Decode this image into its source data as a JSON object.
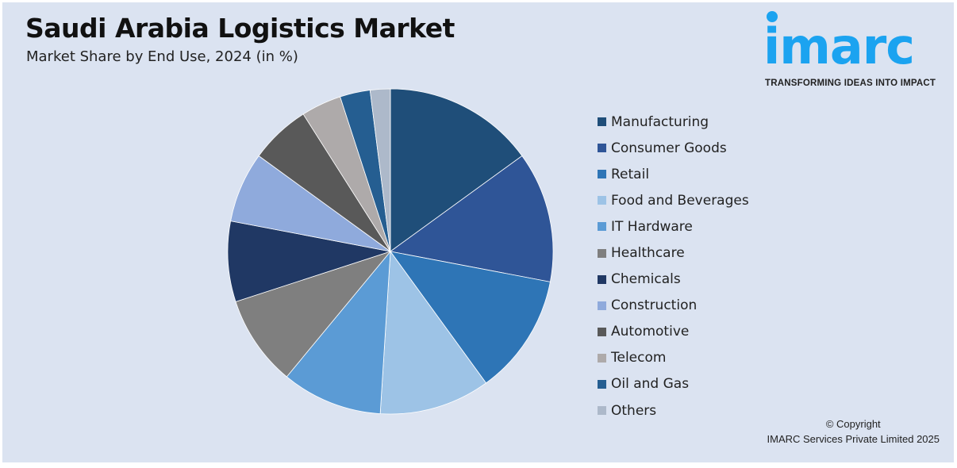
{
  "header": {
    "title": "Saudi Arabia Logistics Market",
    "subtitle": "Market Share by End Use, 2024 (in %)"
  },
  "logo": {
    "word": "imarc",
    "tagline": "TRANSFORMING IDEAS INTO IMPACT"
  },
  "footer": {
    "copyright": "© Copyright",
    "company": "IMARC Services Private Limited 2025"
  },
  "chart_data": {
    "type": "pie",
    "title": "Saudi Arabia Logistics Market",
    "subtitle": "Market Share by End Use, 2024 (in %)",
    "legend_position": "right",
    "categories": [
      "Manufacturing",
      "Consumer Goods",
      "Retail",
      "Food and Beverages",
      "IT Hardware",
      "Healthcare",
      "Chemicals",
      "Construction",
      "Automotive",
      "Telecom",
      "Oil and Gas",
      "Others"
    ],
    "values": [
      15,
      13,
      12,
      11,
      10,
      9,
      8,
      7,
      6,
      4,
      3,
      2
    ],
    "colors": [
      "#1f4e79",
      "#2f5597",
      "#2e75b6",
      "#9dc3e6",
      "#5b9bd5",
      "#7f7f7f",
      "#203864",
      "#8faadc",
      "#595959",
      "#aeaaaa",
      "#255e91",
      "#adb9ca"
    ]
  }
}
